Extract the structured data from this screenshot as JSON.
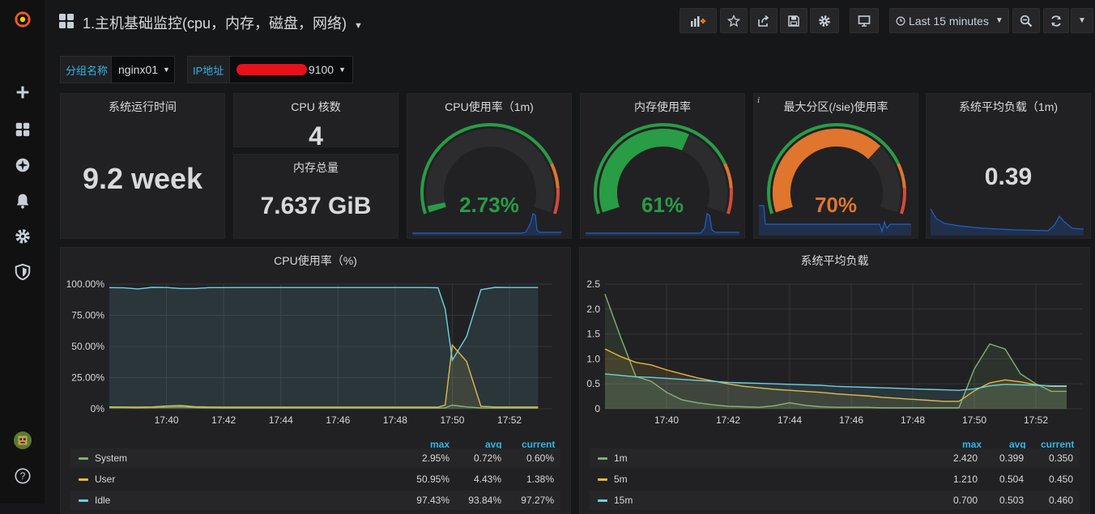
{
  "navbar": {
    "dashboard_title": "1.主机基础监控(cpu，内存，磁盘，网络)",
    "time_range": "Last 15 minutes"
  },
  "variables": [
    {
      "label": "分组名称",
      "value": "nginx01"
    },
    {
      "label": "IP地址",
      "value": "9100"
    }
  ],
  "colors": {
    "green": "#299c46",
    "orange": "#e0752d",
    "red": "#d44a3a",
    "blue": "#33b5e5",
    "spark": "#1f60c4"
  },
  "stats": {
    "uptime": {
      "title": "系统运行时间",
      "value": "9.2 week"
    },
    "cpu_cores": {
      "title": "CPU 核数",
      "value": "4"
    },
    "mem_total": {
      "title": "内存总量",
      "value": "7.637 GiB"
    },
    "load_1m": {
      "title": "系统平均负载（1m)",
      "value": "0.39"
    }
  },
  "gauges": [
    {
      "title": "CPU使用率（1m)",
      "value": "2.73%",
      "fraction": 0.0273,
      "color": "#299c46"
    },
    {
      "title": "内存使用率",
      "value": "61%",
      "fraction": 0.61,
      "color": "#299c46"
    },
    {
      "title": "最大分区(/sie)使用率",
      "value": "70%",
      "fraction": 0.7,
      "color": "#e0752d"
    }
  ],
  "cpu_panel": {
    "title": "CPU使用率（%)",
    "legend_headers": [
      "max",
      "avg",
      "current"
    ],
    "series": [
      {
        "name": "System",
        "color": "#7eb26d",
        "max": "2.95%",
        "avg": "0.72%",
        "current": "0.60%"
      },
      {
        "name": "User",
        "color": "#eab839",
        "max": "50.95%",
        "avg": "4.43%",
        "current": "1.38%"
      },
      {
        "name": "Idle",
        "color": "#6ed0e0",
        "max": "97.43%",
        "avg": "93.84%",
        "current": "97.27%"
      }
    ]
  },
  "load_panel": {
    "title": "系统平均负载",
    "legend_headers": [
      "max",
      "avg",
      "current"
    ],
    "series": [
      {
        "name": "1m",
        "color": "#7eb26d",
        "max": "2.420",
        "avg": "0.399",
        "current": "0.350"
      },
      {
        "name": "5m",
        "color": "#eab839",
        "max": "1.210",
        "avg": "0.504",
        "current": "0.450"
      },
      {
        "name": "15m",
        "color": "#6ed0e0",
        "max": "0.700",
        "avg": "0.503",
        "current": "0.460"
      }
    ]
  },
  "chart_data": [
    {
      "type": "line",
      "title": "CPU使用率（%)",
      "xlabel": "",
      "ylabel": "",
      "x_ticks": [
        "17:40",
        "17:42",
        "17:44",
        "17:46",
        "17:48",
        "17:50",
        "17:52"
      ],
      "x_tick_minutes": [
        40,
        42,
        44,
        46,
        48,
        50,
        52
      ],
      "xlim": [
        38,
        53.5
      ],
      "ylim": [
        0,
        100
      ],
      "y_ticks": [
        "0%",
        "25.00%",
        "50.00%",
        "75.00%",
        "100.00%"
      ],
      "y_tick_values": [
        0,
        25,
        50,
        75,
        100
      ],
      "x": [
        38,
        38.5,
        39,
        39.5,
        40,
        40.5,
        41,
        41.5,
        42,
        42.5,
        43,
        43.5,
        44,
        44.5,
        45,
        45.5,
        46,
        46.5,
        47,
        47.5,
        48,
        48.5,
        49,
        49.5,
        49.75,
        50,
        50.5,
        51,
        51.5,
        52,
        52.5,
        53
      ],
      "series": [
        {
          "name": "System",
          "color": "#7eb26d",
          "values": [
            1.0,
            0.9,
            0.8,
            0.9,
            1.2,
            1.5,
            1.0,
            0.8,
            0.6,
            0.6,
            0.6,
            0.6,
            0.6,
            0.6,
            0.6,
            0.6,
            0.6,
            0.6,
            0.6,
            0.6,
            0.6,
            0.6,
            0.6,
            0.6,
            0.8,
            2.95,
            1.5,
            0.7,
            0.6,
            0.6,
            0.6,
            0.6
          ]
        },
        {
          "name": "User",
          "color": "#eab839",
          "values": [
            1.5,
            1.4,
            1.3,
            1.5,
            2.2,
            2.6,
            1.6,
            1.4,
            1.3,
            1.3,
            1.3,
            1.3,
            1.3,
            1.3,
            1.3,
            1.3,
            1.3,
            1.3,
            1.3,
            1.3,
            1.3,
            1.3,
            1.3,
            1.3,
            3.0,
            50.95,
            38.0,
            2.0,
            1.4,
            1.4,
            1.4,
            1.4
          ]
        },
        {
          "name": "Idle",
          "color": "#6ed0e0",
          "values": [
            97.2,
            97.0,
            96.2,
            97.4,
            97.3,
            96.5,
            96.5,
            97.2,
            97.2,
            97.3,
            97.3,
            97.3,
            97.3,
            97.3,
            97.3,
            97.3,
            97.3,
            97.3,
            97.3,
            97.3,
            97.3,
            97.3,
            97.3,
            97.1,
            80.0,
            39.0,
            58.0,
            95.5,
            97.4,
            97.3,
            97.3,
            97.3
          ]
        }
      ]
    },
    {
      "type": "line",
      "title": "系统平均负载",
      "xlabel": "",
      "ylabel": "",
      "x_ticks": [
        "17:40",
        "17:42",
        "17:44",
        "17:46",
        "17:48",
        "17:50",
        "17:52"
      ],
      "x_tick_minutes": [
        40,
        42,
        44,
        46,
        48,
        50,
        52
      ],
      "xlim": [
        38,
        53.5
      ],
      "ylim": [
        0,
        2.5
      ],
      "y_ticks": [
        "0",
        "0.5",
        "1.0",
        "1.5",
        "2.0",
        "2.5"
      ],
      "y_tick_values": [
        0,
        0.5,
        1.0,
        1.5,
        2.0,
        2.5
      ],
      "x": [
        38,
        38.5,
        39,
        39.5,
        40,
        40.5,
        41,
        41.5,
        42,
        42.5,
        43,
        43.5,
        44,
        44.5,
        45,
        45.5,
        46,
        46.5,
        47,
        47.5,
        48,
        48.5,
        49,
        49.5,
        50,
        50.5,
        51,
        51.5,
        52,
        52.5,
        53
      ],
      "series": [
        {
          "name": "1m",
          "color": "#7eb26d",
          "values": [
            2.3,
            1.45,
            0.65,
            0.55,
            0.33,
            0.18,
            0.12,
            0.08,
            0.05,
            0.04,
            0.03,
            0.06,
            0.12,
            0.07,
            0.04,
            0.03,
            0.03,
            0.03,
            0.02,
            0.02,
            0.02,
            0.02,
            0.02,
            0.02,
            0.8,
            1.3,
            1.2,
            0.7,
            0.5,
            0.35,
            0.35
          ]
        },
        {
          "name": "5m",
          "color": "#eab839",
          "values": [
            1.2,
            1.05,
            0.93,
            0.88,
            0.78,
            0.7,
            0.62,
            0.56,
            0.5,
            0.45,
            0.42,
            0.39,
            0.37,
            0.35,
            0.33,
            0.3,
            0.28,
            0.26,
            0.23,
            0.21,
            0.19,
            0.17,
            0.15,
            0.15,
            0.36,
            0.52,
            0.58,
            0.54,
            0.48,
            0.45,
            0.45
          ]
        },
        {
          "name": "15m",
          "color": "#6ed0e0",
          "values": [
            0.7,
            0.67,
            0.64,
            0.63,
            0.61,
            0.59,
            0.57,
            0.55,
            0.53,
            0.52,
            0.51,
            0.5,
            0.49,
            0.48,
            0.47,
            0.45,
            0.44,
            0.43,
            0.42,
            0.41,
            0.4,
            0.39,
            0.38,
            0.37,
            0.4,
            0.46,
            0.49,
            0.48,
            0.47,
            0.46,
            0.46
          ]
        }
      ]
    }
  ]
}
